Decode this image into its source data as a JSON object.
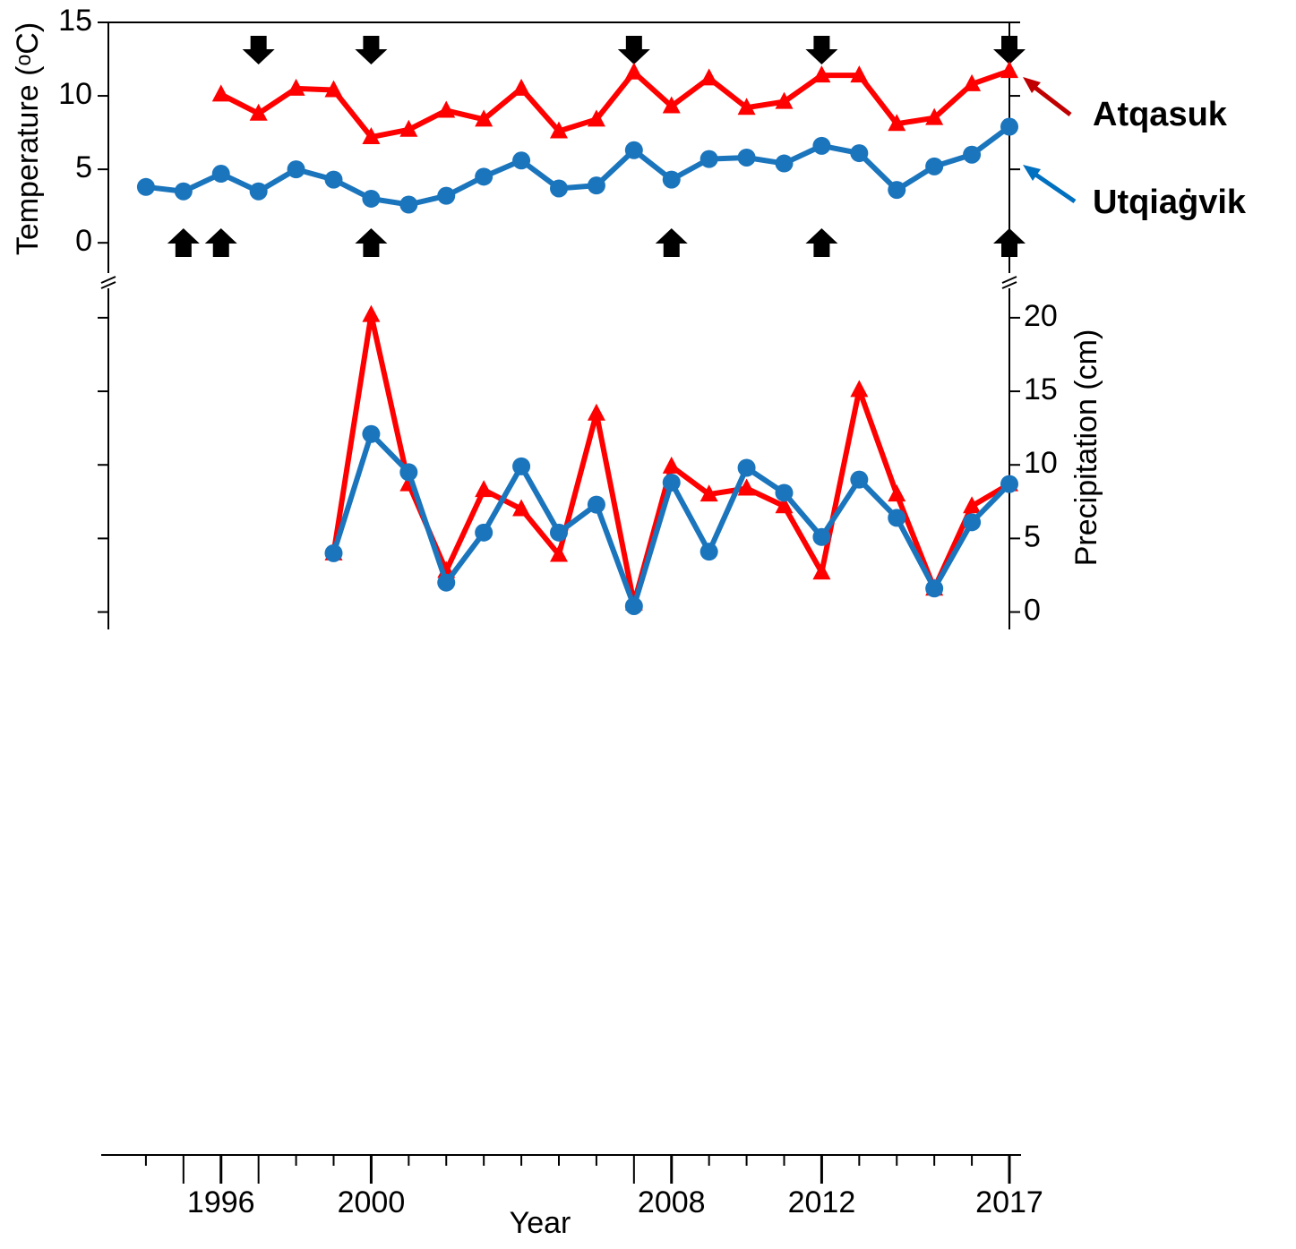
{
  "chart_data": [
    {
      "type": "line",
      "ylabel": "Temperature (ᵒC)",
      "x": [
        1994,
        1995,
        1996,
        1997,
        1998,
        1999,
        2000,
        2001,
        2002,
        2003,
        2004,
        2005,
        2006,
        2007,
        2008,
        2009,
        2010,
        2011,
        2012,
        2013,
        2014,
        2015,
        2016,
        2017
      ],
      "series": [
        {
          "name": "Atqasuk",
          "color": "#ff0000",
          "label_color": "#c00000",
          "marker": "triangle",
          "values": [
            null,
            null,
            10.1,
            8.8,
            10.5,
            10.4,
            7.2,
            7.7,
            9.0,
            8.4,
            10.5,
            7.6,
            8.4,
            11.6,
            9.3,
            11.2,
            9.2,
            9.6,
            11.4,
            11.4,
            8.1,
            8.5,
            10.8,
            11.7
          ]
        },
        {
          "name": "Utqiaġvik",
          "color": "#1a75bd",
          "label_color": "#0070c0",
          "marker": "circle",
          "values": [
            3.8,
            3.5,
            4.7,
            3.5,
            5.0,
            4.3,
            3.0,
            2.6,
            3.2,
            4.5,
            5.6,
            3.7,
            3.9,
            6.3,
            4.3,
            5.7,
            5.8,
            5.4,
            6.6,
            6.1,
            3.6,
            5.2,
            6.0,
            7.9
          ]
        }
      ],
      "xlim": [
        1993,
        2017
      ],
      "ylim": [
        -2,
        15
      ],
      "yticks": [
        0,
        5,
        10,
        15
      ],
      "down_arrows": [
        1997,
        2000,
        2007,
        2012,
        2017
      ],
      "up_arrows": [
        1995,
        1996,
        2000,
        2008,
        2012,
        2017
      ]
    },
    {
      "type": "line",
      "ylabel": "Precipitation (cm)",
      "xlabel": "Year",
      "x": [
        1999,
        2000,
        2001,
        2002,
        2003,
        2004,
        2005,
        2006,
        2007,
        2008,
        2009,
        2010,
        2011,
        2012,
        2013,
        2014,
        2015,
        2016,
        2017
      ],
      "series": [
        {
          "color": "#ff0000",
          "marker": "triangle",
          "values": [
            4.0,
            20.2,
            8.7,
            2.8,
            8.3,
            7.0,
            3.9,
            13.5,
            0.6,
            9.9,
            8.0,
            8.4,
            7.2,
            2.7,
            15.1,
            8.0,
            1.6,
            7.2,
            8.7
          ]
        },
        {
          "color": "#1a75bd",
          "marker": "circle",
          "values": [
            4.0,
            12.1,
            9.5,
            2.0,
            5.4,
            9.9,
            5.4,
            7.3,
            0.4,
            8.8,
            4.1,
            9.8,
            8.1,
            5.1,
            9.0,
            6.4,
            1.6,
            6.1,
            8.7
          ]
        }
      ],
      "xlim": [
        1993,
        2017
      ],
      "ylim": [
        -1,
        22
      ],
      "yticks": [
        0,
        5,
        10,
        15,
        20
      ],
      "xticks": [
        1996,
        2000,
        2008,
        2012,
        2017
      ],
      "xminorticks": [
        1994,
        1995,
        1997,
        1998,
        1999,
        2001,
        2002,
        2003,
        2004,
        2005,
        2006,
        2007,
        2009,
        2010,
        2011,
        2013,
        2014,
        2015,
        2016
      ]
    }
  ]
}
